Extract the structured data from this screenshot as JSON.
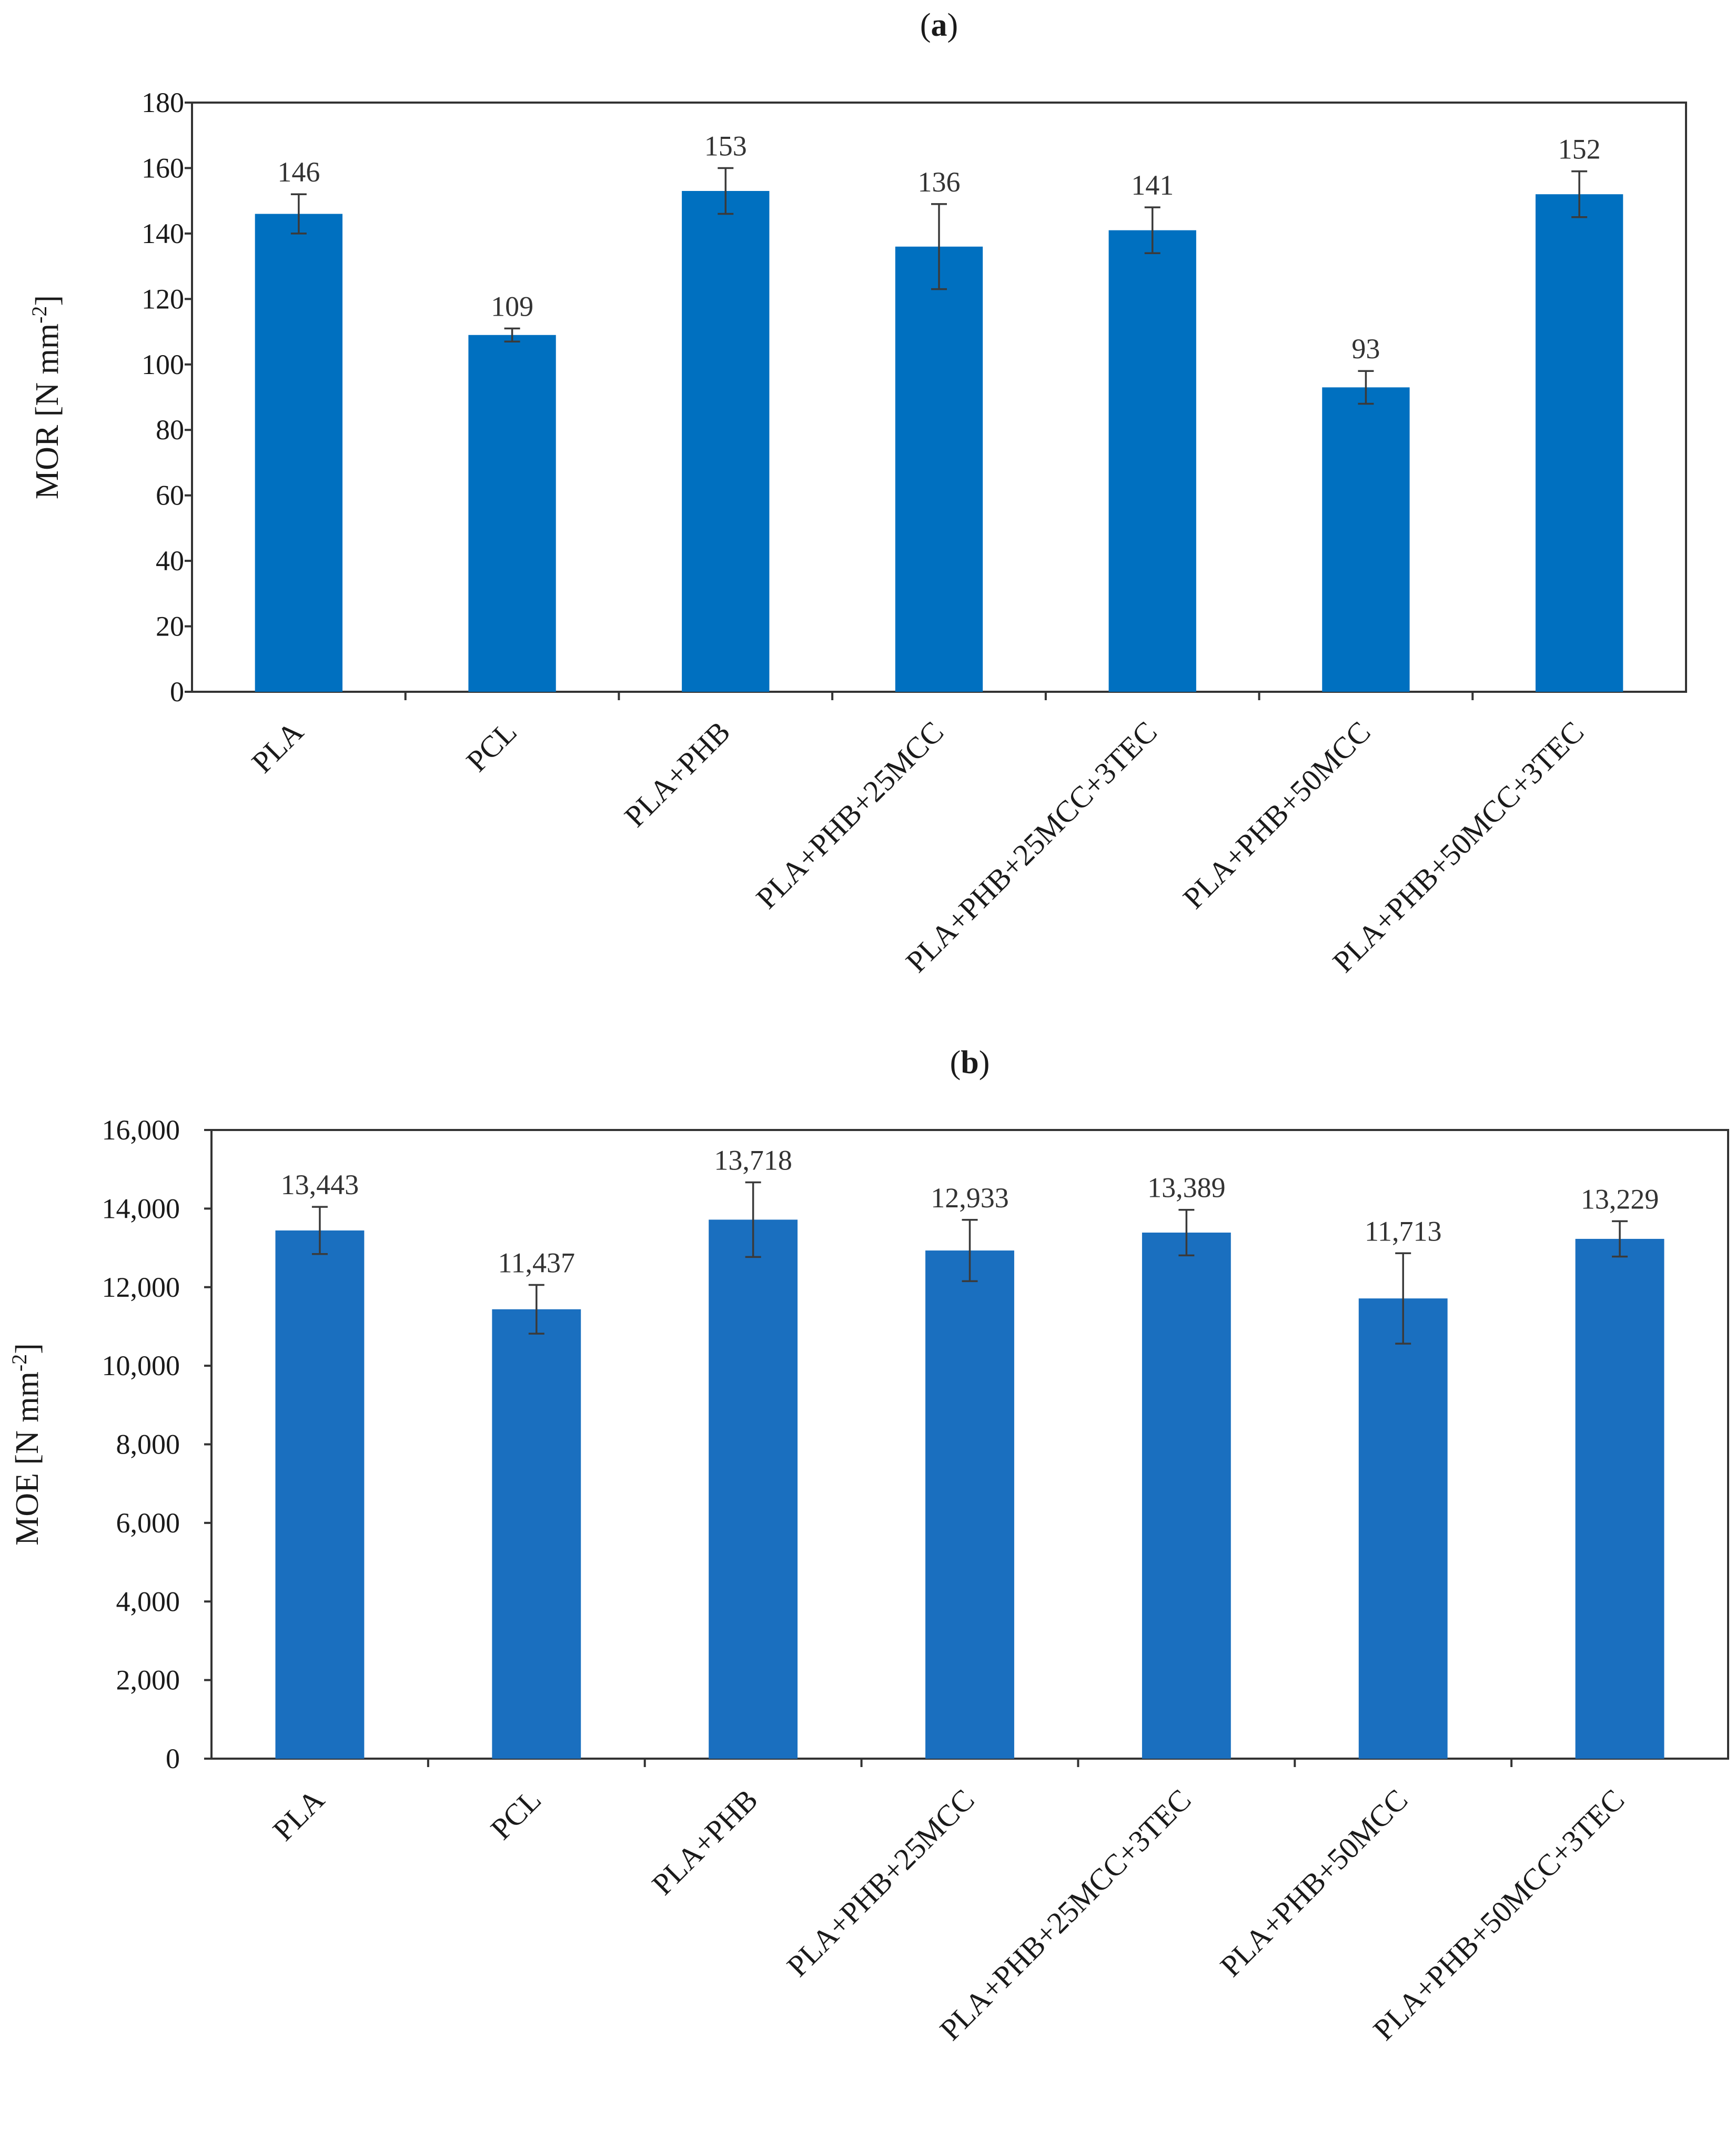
{
  "chart_data": [
    {
      "type": "bar",
      "panel_label": "a",
      "title": "",
      "ylabel": "MOR [N mm",
      "ylabel_sup": "-2",
      "ylabel_close": "]",
      "xlabel": "",
      "ylim": [
        0,
        180
      ],
      "yticks": [
        0,
        20,
        40,
        60,
        80,
        100,
        120,
        140,
        160,
        180
      ],
      "ytick_labels": [
        "0",
        "20",
        "40",
        "60",
        "80",
        "100",
        "120",
        "140",
        "160",
        "180"
      ],
      "categories": [
        "PLA",
        "PCL",
        "PLA+PHB",
        "PLA+PHB+25MCC",
        "PLA+PHB+25MCC+3TEC",
        "PLA+PHB+50MCC",
        "PLA+PHB+50MCC+3TEC"
      ],
      "values": [
        146,
        109,
        153,
        136,
        141,
        93,
        152
      ],
      "value_labels": [
        "146",
        "109",
        "153",
        "136",
        "141",
        "93",
        "152"
      ],
      "errors": [
        6,
        2,
        7,
        13,
        7,
        5,
        7
      ],
      "bar_color": "#0070C0",
      "grid": false
    },
    {
      "type": "bar",
      "panel_label": "b",
      "title": "",
      "ylabel": "MOE [N mm",
      "ylabel_sup": "-2",
      "ylabel_close": "]",
      "xlabel": "",
      "ylim": [
        0,
        16000
      ],
      "yticks": [
        0,
        2000,
        4000,
        6000,
        8000,
        10000,
        12000,
        14000,
        16000
      ],
      "ytick_labels": [
        "0",
        "2,000",
        "4,000",
        "6,000",
        "8,000",
        "10,000",
        "12,000",
        "14,000",
        "16,000"
      ],
      "categories": [
        "PLA",
        "PCL",
        "PLA+PHB",
        "PLA+PHB+25MCC",
        "PLA+PHB+25MCC+3TEC",
        "PLA+PHB+50MCC",
        "PLA+PHB+50MCC+3TEC"
      ],
      "values": [
        13443,
        11437,
        13718,
        12933,
        13389,
        11713,
        13229
      ],
      "value_labels": [
        "13,443",
        "11,437",
        "13,718",
        "12,933",
        "13,389",
        "11,713",
        "13,229"
      ],
      "errors": [
        600,
        620,
        950,
        780,
        580,
        1150,
        450
      ],
      "bar_color": "#1A6FBF",
      "grid": false
    }
  ]
}
